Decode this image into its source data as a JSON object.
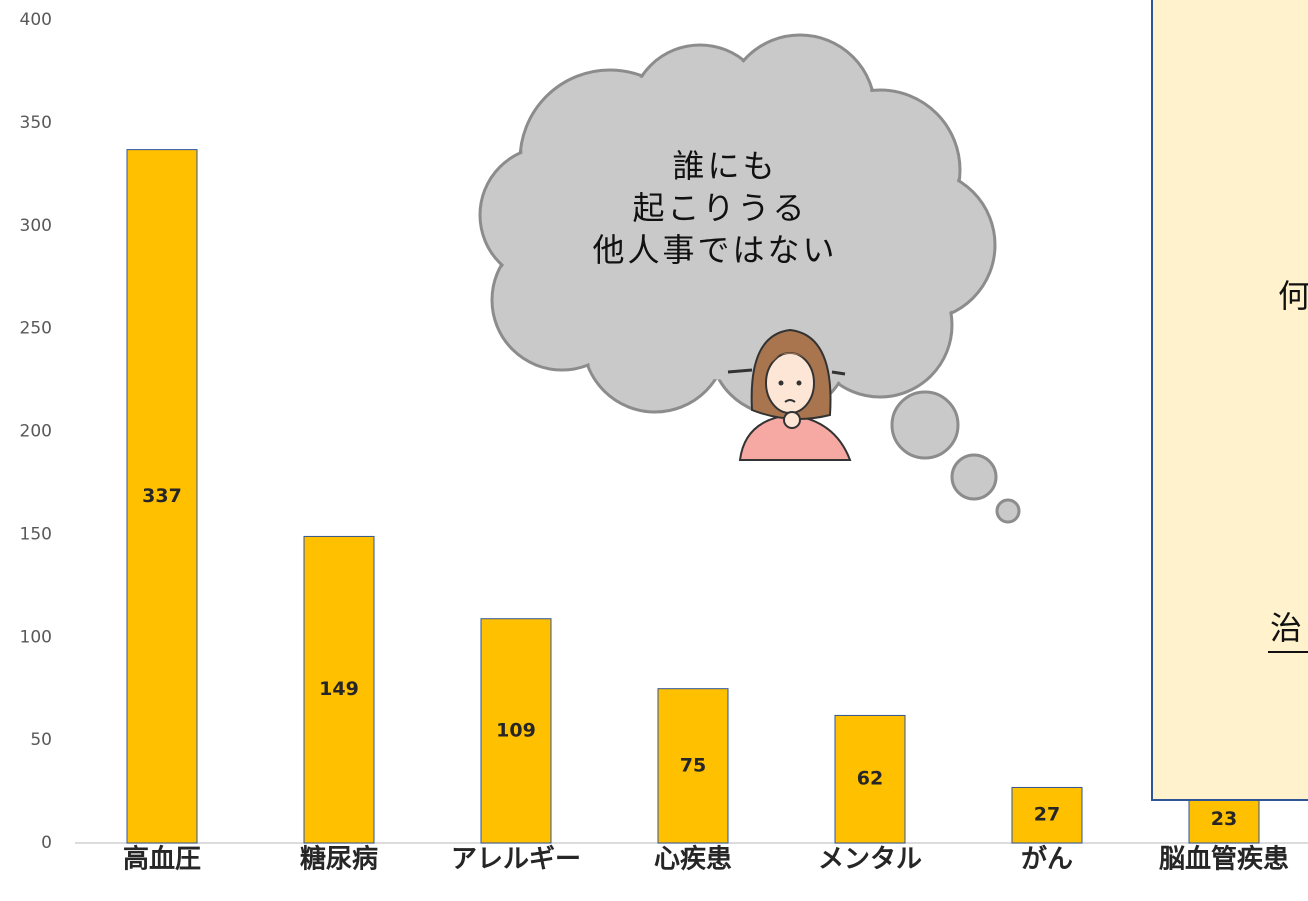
{
  "chart_data": {
    "type": "bar",
    "categories": [
      "高血圧",
      "糖尿病",
      "アレルギー",
      "心疾患",
      "メンタル",
      "がん",
      "脳血管疾患"
    ],
    "values": [
      337,
      149,
      109,
      75,
      62,
      27,
      23
    ],
    "color": "#FFC000",
    "ylim": [
      0,
      400
    ],
    "yticks": [
      0,
      50,
      100,
      150,
      200,
      250,
      300,
      350,
      400
    ],
    "grid": false,
    "annotations": {
      "cloud": [
        "誰にも",
        "起こりうる",
        "他人事ではない"
      ],
      "box": [
        "何",
        "治"
      ]
    }
  }
}
